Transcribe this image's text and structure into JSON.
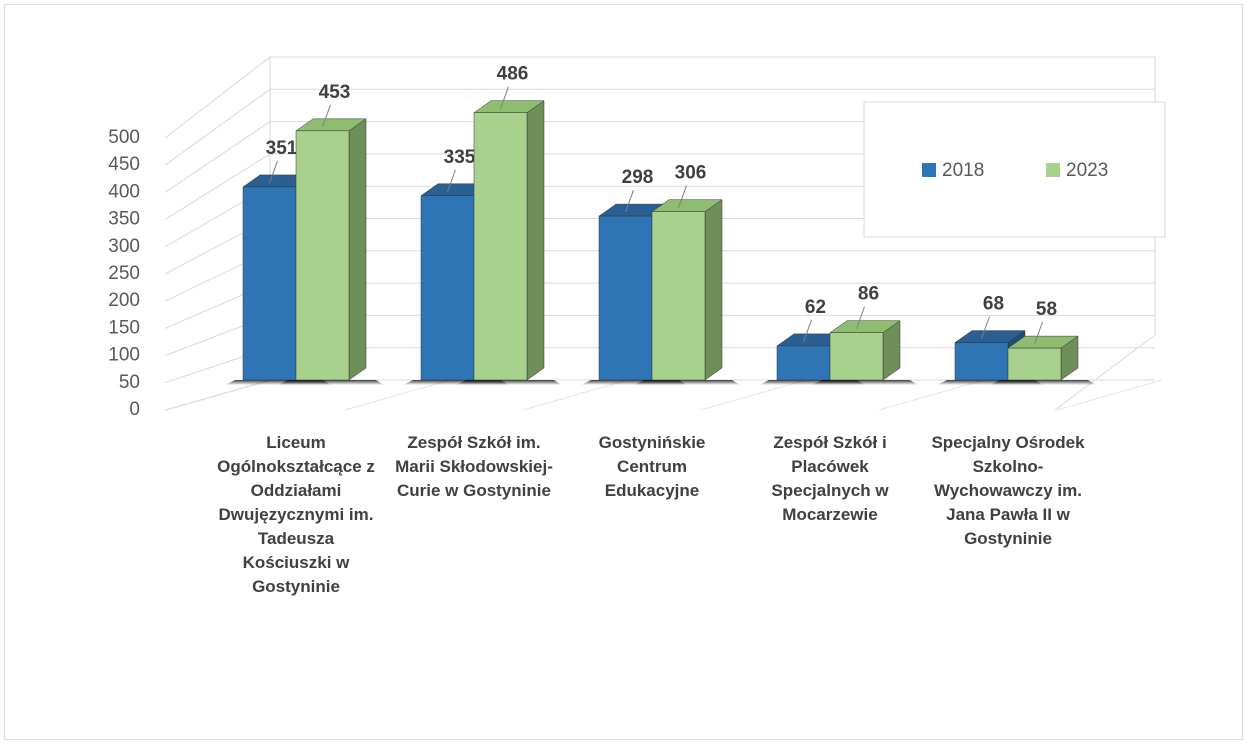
{
  "chart_data": {
    "type": "bar3d",
    "categories": [
      "Liceum Ogólnokształcące z Oddziałami Dwujęzycznymi im. Tadeusza Kościuszki w Gostyninie",
      "Zespół Szkół im. Marii Skłodowskiej-Curie w Gostyninie",
      "Gostynińskie Centrum Edukacyjne",
      "Zespół Szkół i Placówek Specjalnych w Mocarzewie",
      "Specjalny Ośrodek Szkolno-Wychowawczy im. Jana Pawła II w Gostyninie"
    ],
    "series": [
      {
        "name": "2018",
        "color": "#2e75b6",
        "values": [
          351,
          335,
          298,
          62,
          68
        ]
      },
      {
        "name": "2023",
        "color": "#a9d18e",
        "values": [
          453,
          486,
          306,
          86,
          58
        ]
      }
    ],
    "ylim": [
      0,
      500
    ],
    "yticks": [
      0,
      50,
      100,
      150,
      200,
      250,
      300,
      350,
      400,
      450,
      500
    ],
    "grid": true,
    "legend": "upper right"
  }
}
